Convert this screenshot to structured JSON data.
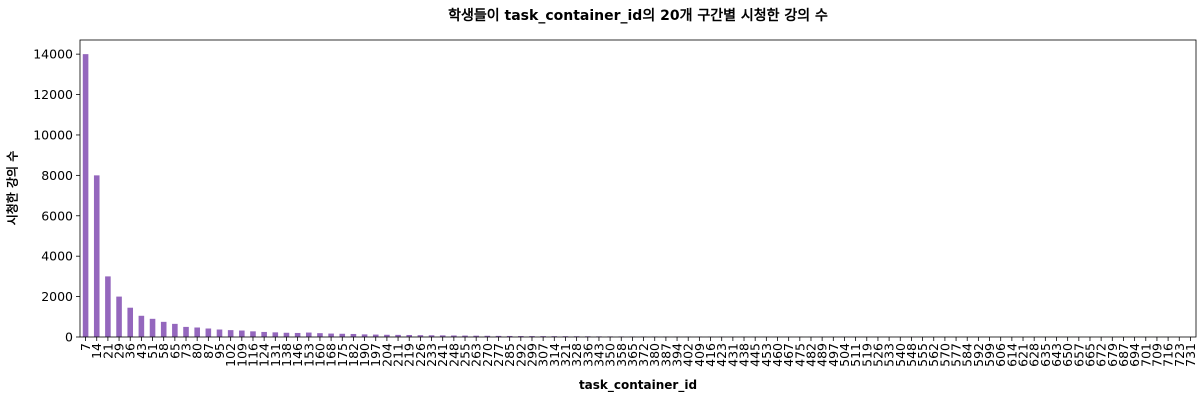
{
  "chart_data": {
    "type": "bar",
    "title": "학생들이 task_container_id의 20개 구간별 시청한 강의 수",
    "xlabel": "task_container_id",
    "ylabel": "시청한 강의 수",
    "ylim": [
      0,
      14700
    ],
    "yticks": [
      0,
      2000,
      4000,
      6000,
      8000,
      10000,
      12000,
      14000
    ],
    "grid": false,
    "bar_color": "#9467bd",
    "categories": [
      "7",
      "14",
      "21",
      "29",
      "36",
      "43",
      "51",
      "58",
      "65",
      "73",
      "80",
      "87",
      "95",
      "102",
      "109",
      "116",
      "124",
      "131",
      "138",
      "146",
      "153",
      "160",
      "168",
      "175",
      "182",
      "190",
      "197",
      "204",
      "211",
      "219",
      "226",
      "233",
      "241",
      "248",
      "255",
      "263",
      "270",
      "277",
      "285",
      "292",
      "299",
      "307",
      "314",
      "321",
      "328",
      "336",
      "343",
      "350",
      "358",
      "365",
      "372",
      "380",
      "387",
      "394",
      "402",
      "409",
      "416",
      "423",
      "431",
      "438",
      "445",
      "453",
      "460",
      "467",
      "475",
      "482",
      "489",
      "497",
      "504",
      "511",
      "519",
      "526",
      "533",
      "540",
      "548",
      "555",
      "562",
      "570",
      "577",
      "584",
      "592",
      "599",
      "606",
      "614",
      "621",
      "628",
      "635",
      "643",
      "650",
      "657",
      "665",
      "672",
      "679",
      "687",
      "694",
      "701",
      "709",
      "716",
      "723",
      "731"
    ],
    "values": [
      14000,
      8000,
      3000,
      2000,
      1450,
      1050,
      900,
      750,
      650,
      500,
      470,
      420,
      370,
      340,
      320,
      280,
      250,
      230,
      210,
      200,
      220,
      190,
      170,
      160,
      150,
      130,
      120,
      110,
      105,
      100,
      90,
      85,
      80,
      75,
      70,
      65,
      60,
      55,
      52,
      48,
      45,
      42,
      40,
      38,
      36,
      34,
      30,
      28,
      26,
      24,
      22,
      20,
      18,
      16,
      15,
      14,
      13,
      12,
      11,
      10,
      10,
      9,
      9,
      8,
      8,
      7,
      7,
      6,
      6,
      5,
      5,
      5,
      4,
      4,
      4,
      3,
      3,
      3,
      3,
      2,
      2,
      2,
      2,
      2,
      2,
      2,
      1,
      1,
      1,
      1,
      1,
      1,
      1,
      1,
      1,
      1,
      1,
      1,
      1,
      1
    ]
  }
}
